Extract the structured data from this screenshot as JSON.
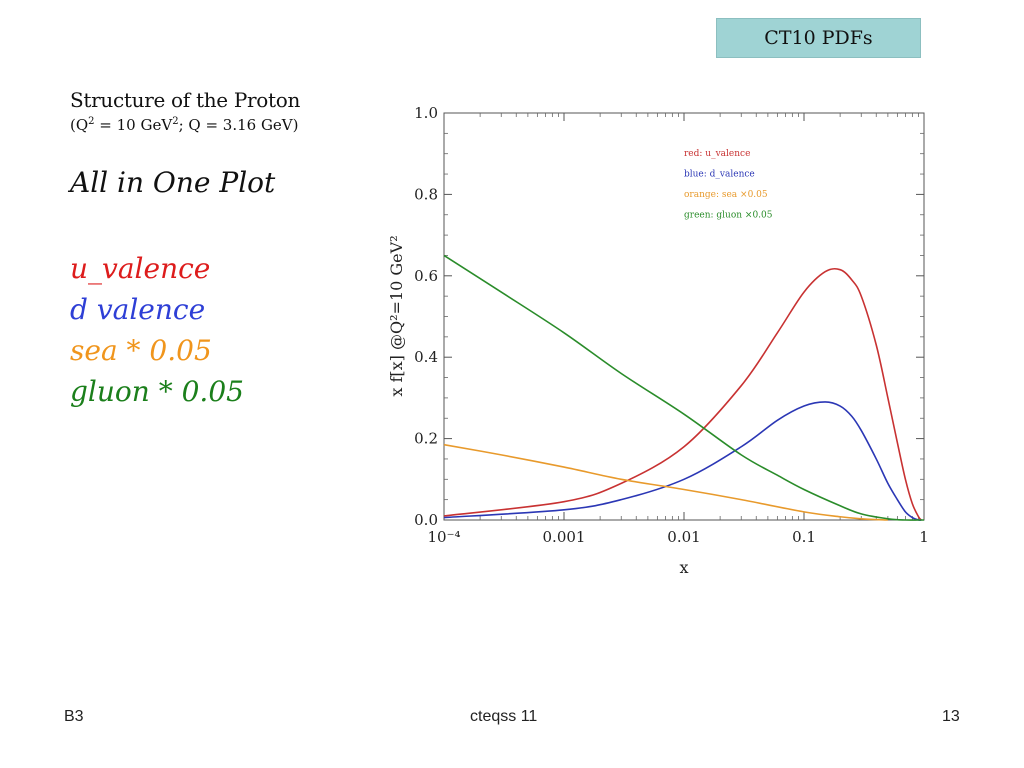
{
  "badge": "CT10 PDFs",
  "slide": {
    "title": "Structure of the Proton",
    "subtitle_open": "(Q",
    "subtitle_sup1": "2",
    "subtitle_mid": " = 10 GeV",
    "subtitle_sup2": "2",
    "subtitle_end": "; Q = 3.16 GeV)",
    "heading": "All in One Plot",
    "series_labels": [
      {
        "text": "u_valence",
        "color": "#dd1c1c"
      },
      {
        "text": "d valence",
        "color": "#2e3fd6"
      },
      {
        "text": "sea * 0.05",
        "color": "#f0951c"
      },
      {
        "text": "gluon * 0.05",
        "color": "#1b7f1b"
      }
    ]
  },
  "footer": {
    "left": "B3",
    "center": "cteqss 11",
    "right": "13"
  },
  "colors": {
    "u_valence": "#c83232",
    "d_valence": "#2b37b5",
    "sea": "#e89a2c",
    "gluon": "#2a8c2a",
    "badge": "#9fd3d4"
  },
  "chart_data": {
    "type": "line",
    "xlabel": "x",
    "ylabel": "x f[x]  @Q²=10 GeV²",
    "xscale": "log",
    "xlim": [
      0.0001,
      1
    ],
    "ylim": [
      0,
      1.0
    ],
    "x_ticks": [
      "10⁻⁴",
      "0.001",
      "0.01",
      "0.1",
      "1"
    ],
    "y_ticks": [
      "0.0",
      "0.2",
      "0.4",
      "0.6",
      "0.8",
      "1.0"
    ],
    "legend_position": "top-right",
    "legend": [
      "red: u_valence",
      "blue: d_valence",
      "orange: sea ×0.05",
      "green: gluon ×0.05"
    ],
    "series": [
      {
        "name": "red: u_valence",
        "color": "#c83232",
        "x": [
          0.0001,
          0.001,
          0.003,
          0.01,
          0.03,
          0.06,
          0.1,
          0.15,
          0.2,
          0.25,
          0.3,
          0.4,
          0.5,
          0.6,
          0.7,
          0.8,
          0.9,
          0.95
        ],
        "y": [
          0.01,
          0.045,
          0.09,
          0.18,
          0.33,
          0.46,
          0.56,
          0.61,
          0.615,
          0.59,
          0.55,
          0.43,
          0.3,
          0.19,
          0.1,
          0.04,
          0.008,
          0.0
        ]
      },
      {
        "name": "blue: d_valence",
        "color": "#2b37b5",
        "x": [
          0.0001,
          0.001,
          0.003,
          0.01,
          0.03,
          0.06,
          0.1,
          0.15,
          0.2,
          0.25,
          0.3,
          0.4,
          0.5,
          0.6,
          0.7,
          0.8,
          0.9,
          0.95
        ],
        "y": [
          0.006,
          0.025,
          0.05,
          0.1,
          0.18,
          0.245,
          0.28,
          0.29,
          0.28,
          0.255,
          0.22,
          0.15,
          0.09,
          0.05,
          0.02,
          0.006,
          0.0,
          0.0
        ]
      },
      {
        "name": "orange: sea ×0.05",
        "color": "#e89a2c",
        "x": [
          0.0001,
          0.0003,
          0.001,
          0.003,
          0.01,
          0.03,
          0.1,
          0.2,
          0.3,
          0.5
        ],
        "y": [
          0.185,
          0.16,
          0.13,
          0.1,
          0.075,
          0.05,
          0.02,
          0.008,
          0.003,
          0.0
        ]
      },
      {
        "name": "green: gluon ×0.05",
        "color": "#2a8c2a",
        "x": [
          0.0001,
          0.0003,
          0.001,
          0.003,
          0.01,
          0.03,
          0.06,
          0.1,
          0.2,
          0.3,
          0.5,
          0.7,
          0.9,
          1.0
        ],
        "y": [
          0.65,
          0.56,
          0.46,
          0.36,
          0.26,
          0.16,
          0.11,
          0.075,
          0.035,
          0.015,
          0.003,
          0.0,
          0.0,
          0.0
        ]
      }
    ]
  }
}
